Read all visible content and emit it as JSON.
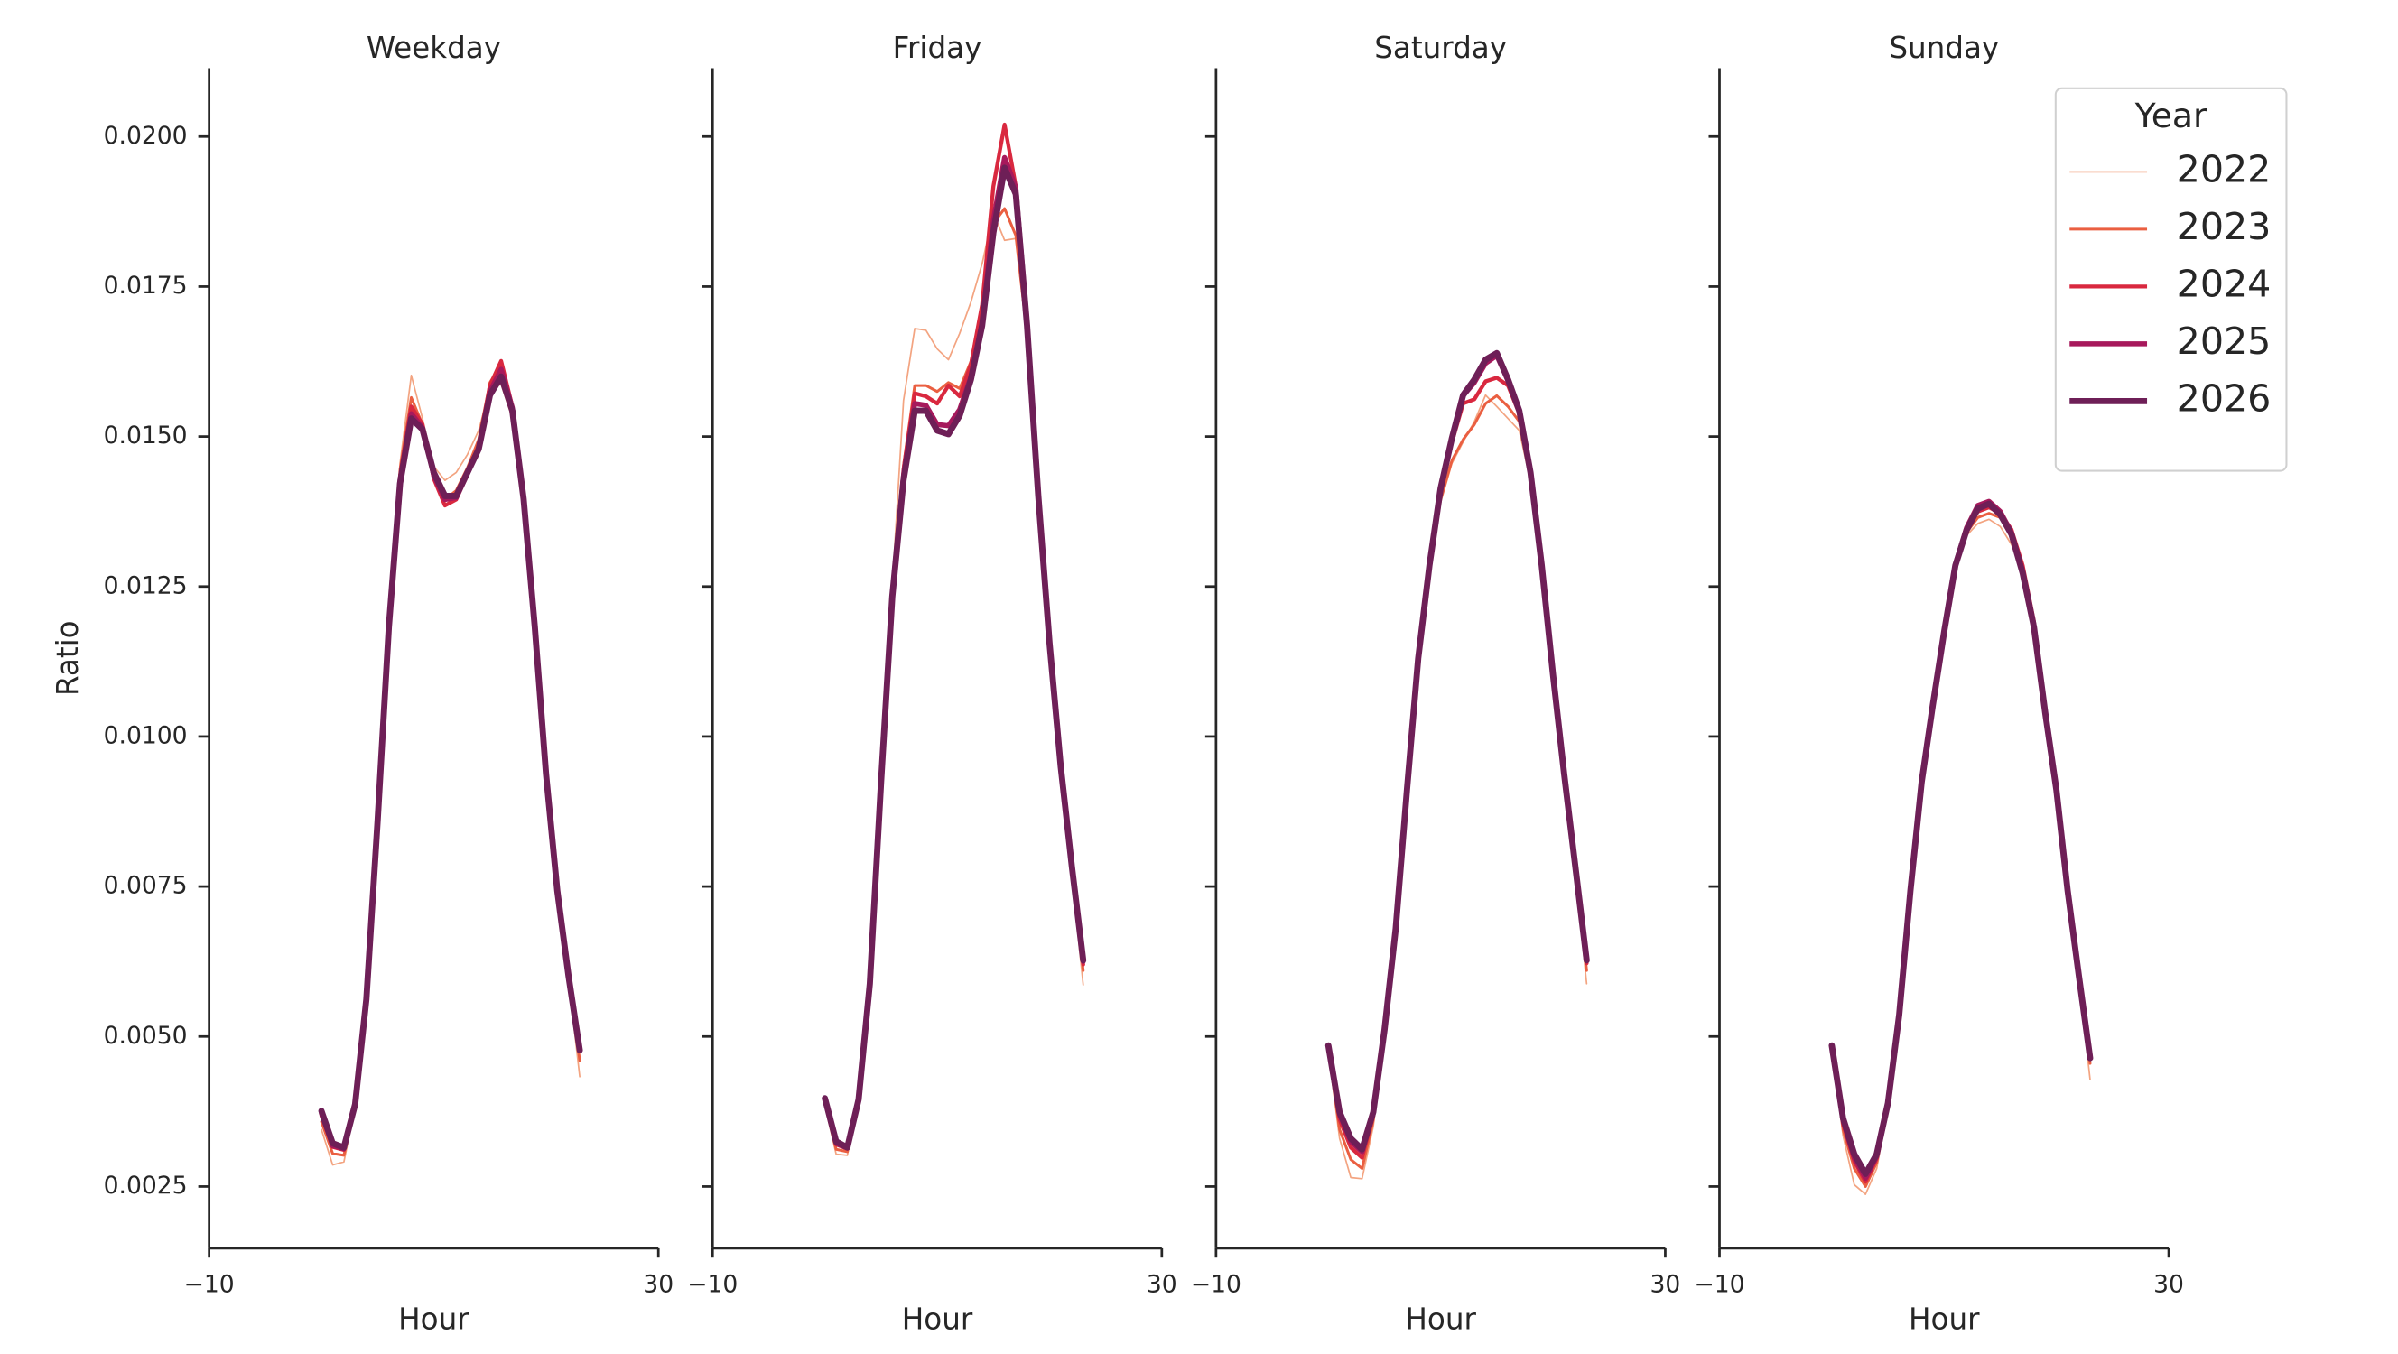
{
  "chart_data": [
    {
      "type": "line",
      "title": "Weekday",
      "xlabel": "Hour",
      "ylabel": "Ratio",
      "x": [
        0,
        1,
        2,
        3,
        4,
        5,
        6,
        7,
        8,
        9,
        10,
        11,
        12,
        13,
        14,
        15,
        16,
        17,
        18,
        19,
        20,
        21,
        22,
        23
      ],
      "xlim": [
        -10,
        30
      ],
      "xticks": [
        {
          "value": -10,
          "label": "−10"
        },
        30
      ],
      "ylim": [
        0.00147,
        0.02114
      ],
      "yticks": [
        0.0025,
        {
          "value": 0.005,
          "label": "0.0050"
        },
        0.0075,
        {
          "value": 0.01,
          "label": "0.0100"
        },
        0.0125,
        {
          "value": 0.015,
          "label": "0.0150"
        },
        0.0175,
        {
          "value": 0.02,
          "label": "0.0200"
        }
      ],
      "series": [
        {
          "name": "2022",
          "color": "#f3a481",
          "values": [
            0.00345,
            0.00286,
            0.00291,
            0.00382,
            0.00568,
            0.0087,
            0.01198,
            0.01455,
            0.01602,
            0.0153,
            0.0145,
            0.01427,
            0.0144,
            0.0147,
            0.0151,
            0.0158,
            0.01587,
            0.0153,
            0.01385,
            0.0118,
            0.00936,
            0.00742,
            0.00595,
            0.00433
          ]
        },
        {
          "name": "2023",
          "color": "#ea5f41",
          "values": [
            0.00358,
            0.00305,
            0.00302,
            0.00385,
            0.00566,
            0.00866,
            0.01192,
            0.01445,
            0.01565,
            0.0152,
            0.01435,
            0.01395,
            0.0141,
            0.01448,
            0.01495,
            0.0159,
            0.0162,
            0.01542,
            0.01395,
            0.01183,
            0.00938,
            0.00744,
            0.006,
            0.0046
          ]
        },
        {
          "name": "2024",
          "color": "#d9283f",
          "values": [
            0.00368,
            0.00316,
            0.00311,
            0.00387,
            0.00565,
            0.00863,
            0.01188,
            0.01434,
            0.0155,
            0.0152,
            0.0143,
            0.01385,
            0.01395,
            0.01437,
            0.01485,
            0.01585,
            0.01626,
            0.0155,
            0.014,
            0.01185,
            0.00939,
            0.00745,
            0.00602,
            0.00475
          ]
        },
        {
          "name": "2025",
          "color": "#a7195c",
          "values": [
            0.00372,
            0.00318,
            0.00313,
            0.00387,
            0.00563,
            0.00861,
            0.01185,
            0.01428,
            0.01538,
            0.01515,
            0.01435,
            0.01395,
            0.01398,
            0.01438,
            0.01481,
            0.01575,
            0.01612,
            0.01548,
            0.01398,
            0.01184,
            0.00938,
            0.00744,
            0.00601,
            0.00478
          ]
        },
        {
          "name": "2026",
          "color": "#6e1f57",
          "values": [
            0.00376,
            0.00322,
            0.00315,
            0.00387,
            0.00562,
            0.00859,
            0.01182,
            0.01422,
            0.0153,
            0.01512,
            0.0144,
            0.01401,
            0.01401,
            0.0144,
            0.01479,
            0.01569,
            0.016,
            0.01543,
            0.01396,
            0.01182,
            0.00937,
            0.00743,
            0.00601,
            0.00477
          ]
        }
      ]
    },
    {
      "type": "line",
      "title": "Friday",
      "xlabel": "Hour",
      "x": [
        0,
        1,
        2,
        3,
        4,
        5,
        6,
        7,
        8,
        9,
        10,
        11,
        12,
        13,
        14,
        15,
        16,
        17,
        18,
        19,
        20,
        21,
        22,
        23
      ],
      "xlim": [
        -10,
        30
      ],
      "xticks": [
        {
          "value": -10,
          "label": "−10"
        },
        30
      ],
      "series": [
        {
          "name": "2022",
          "color": "#f3a481",
          "values": [
            0.00385,
            0.00304,
            0.00302,
            0.00393,
            0.00595,
            0.0094,
            0.0125,
            0.0156,
            0.0168,
            0.01677,
            0.01646,
            0.01628,
            0.01672,
            0.01724,
            0.01788,
            0.01873,
            0.01827,
            0.0183,
            0.0166,
            0.0139,
            0.0115,
            0.00945,
            0.00765,
            0.00586
          ]
        },
        {
          "name": "2023",
          "color": "#ea5f41",
          "values": [
            0.00388,
            0.00312,
            0.00308,
            0.00394,
            0.00593,
            0.00935,
            0.01245,
            0.01452,
            0.01585,
            0.01585,
            0.01575,
            0.0159,
            0.0158,
            0.01625,
            0.0172,
            0.01855,
            0.0188,
            0.01835,
            0.0167,
            0.014,
            0.01155,
            0.0095,
            0.00778,
            0.0061
          ]
        },
        {
          "name": "2024",
          "color": "#d9283f",
          "values": [
            0.00392,
            0.0032,
            0.00313,
            0.00395,
            0.00592,
            0.00932,
            0.01242,
            0.01445,
            0.01572,
            0.01567,
            0.01555,
            0.01585,
            0.01567,
            0.0162,
            0.0172,
            0.01917,
            0.0202,
            0.01917,
            0.017,
            0.0141,
            0.0116,
            0.00952,
            0.0078,
            0.0062
          ]
        },
        {
          "name": "2025",
          "color": "#a7195c",
          "values": [
            0.00395,
            0.00322,
            0.00314,
            0.00395,
            0.0059,
            0.00928,
            0.01238,
            0.01435,
            0.01555,
            0.01552,
            0.0152,
            0.01518,
            0.01545,
            0.016,
            0.0169,
            0.0186,
            0.01965,
            0.01915,
            0.0169,
            0.01405,
            0.01158,
            0.00951,
            0.00782,
            0.00625
          ]
        },
        {
          "name": "2026",
          "color": "#6e1f57",
          "values": [
            0.00397,
            0.00325,
            0.00315,
            0.00395,
            0.00588,
            0.00924,
            0.01233,
            0.01427,
            0.01543,
            0.01543,
            0.0151,
            0.01504,
            0.01535,
            0.01595,
            0.01685,
            0.0184,
            0.01948,
            0.01904,
            0.01685,
            0.01401,
            0.01156,
            0.0095,
            0.00782,
            0.00627
          ]
        }
      ]
    },
    {
      "type": "line",
      "title": "Saturday",
      "xlabel": "Hour",
      "x": [
        0,
        1,
        2,
        3,
        4,
        5,
        6,
        7,
        8,
        9,
        10,
        11,
        12,
        13,
        14,
        15,
        16,
        17,
        18,
        19,
        20,
        21,
        22,
        23
      ],
      "xlim": [
        -10,
        30
      ],
      "xticks": [
        {
          "value": -10,
          "label": "−10"
        },
        30
      ],
      "series": [
        {
          "name": "2022",
          "color": "#f3a481",
          "values": [
            0.00475,
            0.0033,
            0.00265,
            0.00263,
            0.0035,
            0.00502,
            0.00676,
            0.00912,
            0.0113,
            0.0127,
            0.0139,
            0.01455,
            0.01491,
            0.01525,
            0.01569,
            0.0155,
            0.0153,
            0.0151,
            0.01425,
            0.01275,
            0.01095,
            0.00928,
            0.0077,
            0.00588
          ]
        },
        {
          "name": "2023",
          "color": "#ea5f41",
          "values": [
            0.00478,
            0.00345,
            0.00295,
            0.0028,
            0.0036,
            0.00505,
            0.00678,
            0.00912,
            0.01132,
            0.01275,
            0.01395,
            0.0146,
            0.01495,
            0.0152,
            0.01555,
            0.01568,
            0.0155,
            0.01525,
            0.0143,
            0.0128,
            0.011,
            0.00932,
            0.00776,
            0.0061
          ]
        },
        {
          "name": "2024",
          "color": "#d9283f",
          "values": [
            0.0048,
            0.00362,
            0.00315,
            0.00298,
            0.00368,
            0.00508,
            0.00679,
            0.00912,
            0.01133,
            0.01285,
            0.0141,
            0.0149,
            0.01555,
            0.01562,
            0.01592,
            0.01598,
            0.01585,
            0.01538,
            0.01435,
            0.01282,
            0.01102,
            0.00935,
            0.0078,
            0.00622
          ]
        },
        {
          "name": "2025",
          "color": "#a7195c",
          "values": [
            0.00483,
            0.0037,
            0.00325,
            0.00308,
            0.00372,
            0.0051,
            0.0068,
            0.00912,
            0.01132,
            0.01287,
            0.01415,
            0.01498,
            0.01568,
            0.0159,
            0.01622,
            0.01635,
            0.01593,
            0.01542,
            0.01438,
            0.01284,
            0.01103,
            0.00936,
            0.00781,
            0.00626
          ]
        },
        {
          "name": "2026",
          "color": "#6e1f57",
          "values": [
            0.00485,
            0.00374,
            0.0033,
            0.00312,
            0.00374,
            0.00511,
            0.0068,
            0.00911,
            0.0113,
            0.01285,
            0.01414,
            0.01497,
            0.01569,
            0.01595,
            0.01628,
            0.01639,
            0.01595,
            0.01543,
            0.0144,
            0.01285,
            0.01104,
            0.00937,
            0.00782,
            0.00627
          ]
        }
      ]
    },
    {
      "type": "line",
      "title": "Sunday",
      "xlabel": "Hour",
      "x": [
        0,
        1,
        2,
        3,
        4,
        5,
        6,
        7,
        8,
        9,
        10,
        11,
        12,
        13,
        14,
        15,
        16,
        17,
        18,
        19,
        20,
        21,
        22,
        23
      ],
      "xlim": [
        -10,
        30
      ],
      "xticks": [
        {
          "value": -10,
          "label": "−10"
        },
        30
      ],
      "legend": "upper right",
      "legend_title": "Year",
      "series": [
        {
          "name": "2022",
          "color": "#f3a481",
          "values": [
            0.0048,
            0.00335,
            0.00253,
            0.00237,
            0.0028,
            0.00382,
            0.00533,
            0.00741,
            0.00922,
            0.01052,
            0.01172,
            0.01278,
            0.01335,
            0.01355,
            0.01362,
            0.0135,
            0.0132,
            0.01275,
            0.01185,
            0.0104,
            0.00908,
            0.0074,
            0.00595,
            0.00428
          ]
        },
        {
          "name": "2023",
          "color": "#ea5f41",
          "values": [
            0.00482,
            0.00345,
            0.0028,
            0.0025,
            0.0029,
            0.00384,
            0.00534,
            0.00742,
            0.00924,
            0.01054,
            0.01174,
            0.01282,
            0.0134,
            0.01365,
            0.01372,
            0.01365,
            0.0134,
            0.01285,
            0.01195,
            0.01045,
            0.00912,
            0.00744,
            0.00601,
            0.00455
          ]
        },
        {
          "name": "2024",
          "color": "#d9283f",
          "values": [
            0.00483,
            0.00355,
            0.00292,
            0.00258,
            0.00297,
            0.00386,
            0.00535,
            0.00743,
            0.00925,
            0.01055,
            0.01175,
            0.01285,
            0.01345,
            0.01375,
            0.01382,
            0.01372,
            0.01345,
            0.01285,
            0.01192,
            0.01045,
            0.00913,
            0.00745,
            0.00603,
            0.00468
          ]
        },
        {
          "name": "2025",
          "color": "#a7195c",
          "values": [
            0.00484,
            0.0036,
            0.00298,
            0.00264,
            0.003,
            0.00387,
            0.00535,
            0.00743,
            0.00925,
            0.01054,
            0.01175,
            0.01287,
            0.01348,
            0.01385,
            0.01392,
            0.01375,
            0.0134,
            0.01275,
            0.01185,
            0.01042,
            0.00912,
            0.00744,
            0.00602,
            0.00466
          ]
        },
        {
          "name": "2026",
          "color": "#6e1f57",
          "values": [
            0.00485,
            0.00364,
            0.00304,
            0.00271,
            0.00304,
            0.00389,
            0.00536,
            0.00743,
            0.00924,
            0.01053,
            0.01174,
            0.01285,
            0.01344,
            0.0138,
            0.01388,
            0.0137,
            0.01337,
            0.01272,
            0.01182,
            0.0104,
            0.00911,
            0.00743,
            0.00601,
            0.00464
          ]
        }
      ]
    }
  ]
}
